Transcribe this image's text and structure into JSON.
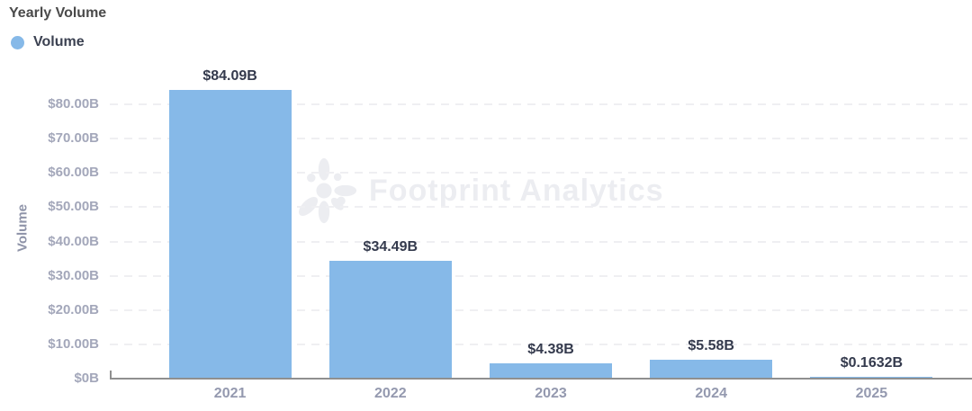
{
  "chart": {
    "title": "Yearly Volume",
    "legend": {
      "label": "Volume",
      "color": "#86B9E8"
    }
  },
  "watermark": {
    "text": "Footprint Analytics"
  },
  "chart_data": {
    "type": "bar",
    "title": "Yearly Volume",
    "series_name": "Volume",
    "categories": [
      "2021",
      "2022",
      "2023",
      "2024",
      "2025"
    ],
    "values": [
      84.09,
      34.49,
      4.38,
      5.58,
      0.1632
    ],
    "value_labels": [
      "$84.09B",
      "$34.49B",
      "$4.38B",
      "$5.58B",
      "$0.1632B"
    ],
    "xlabel": "",
    "ylabel": "Volume",
    "ylim": [
      0,
      88
    ],
    "yticks": [
      0,
      10,
      20,
      30,
      40,
      50,
      60,
      70,
      80
    ],
    "ytick_labels": [
      "$0B",
      "$10.00B",
      "$20.00B",
      "$30.00B",
      "$40.00B",
      "$50.00B",
      "$60.00B",
      "$70.00B",
      "$80.00B"
    ],
    "grid": "horizontal-dashed",
    "legend_position": "top-left",
    "bar_color": "#86B9E8",
    "units": "USD billions"
  }
}
